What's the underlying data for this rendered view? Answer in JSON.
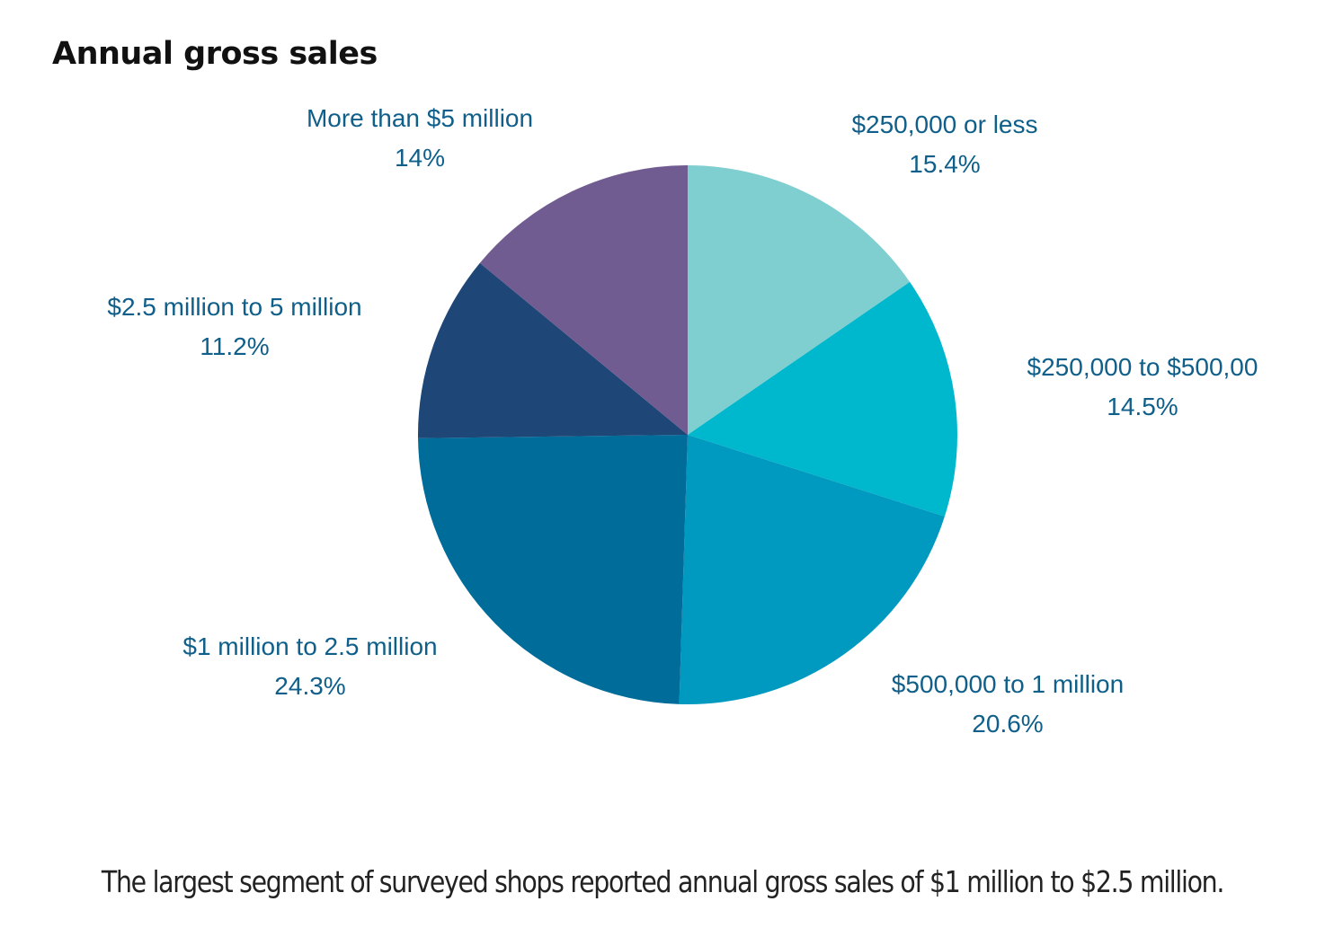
{
  "title": "Annual gross sales",
  "caption": "The largest segment of surveyed shops reported annual gross sales of $1 million to $2.5 million.",
  "chart_data": {
    "type": "pie",
    "title": "Annual gross sales",
    "slices": [
      {
        "label": "$250,000 or less",
        "value": 15.4,
        "display": "15.4%",
        "color": "#80cfd0"
      },
      {
        "label": "$250,000 to $500,00",
        "value": 14.5,
        "display": "14.5%",
        "color": "#00b8cd"
      },
      {
        "label": "$500,000 to 1 million",
        "value": 20.6,
        "display": "20.6%",
        "color": "#0099bf"
      },
      {
        "label": "$1 million to 2.5 million",
        "value": 24.3,
        "display": "24.3%",
        "color": "#006c9a"
      },
      {
        "label": "$2.5 million to 5 million",
        "value": 11.2,
        "display": "11.2%",
        "color": "#1e4677"
      },
      {
        "label": "More than $5 million",
        "value": 14,
        "display": "14%",
        "color": "#705c90"
      }
    ],
    "start_angle": "12 o'clock",
    "direction": "clockwise",
    "label_color": "#0f5f8a"
  }
}
